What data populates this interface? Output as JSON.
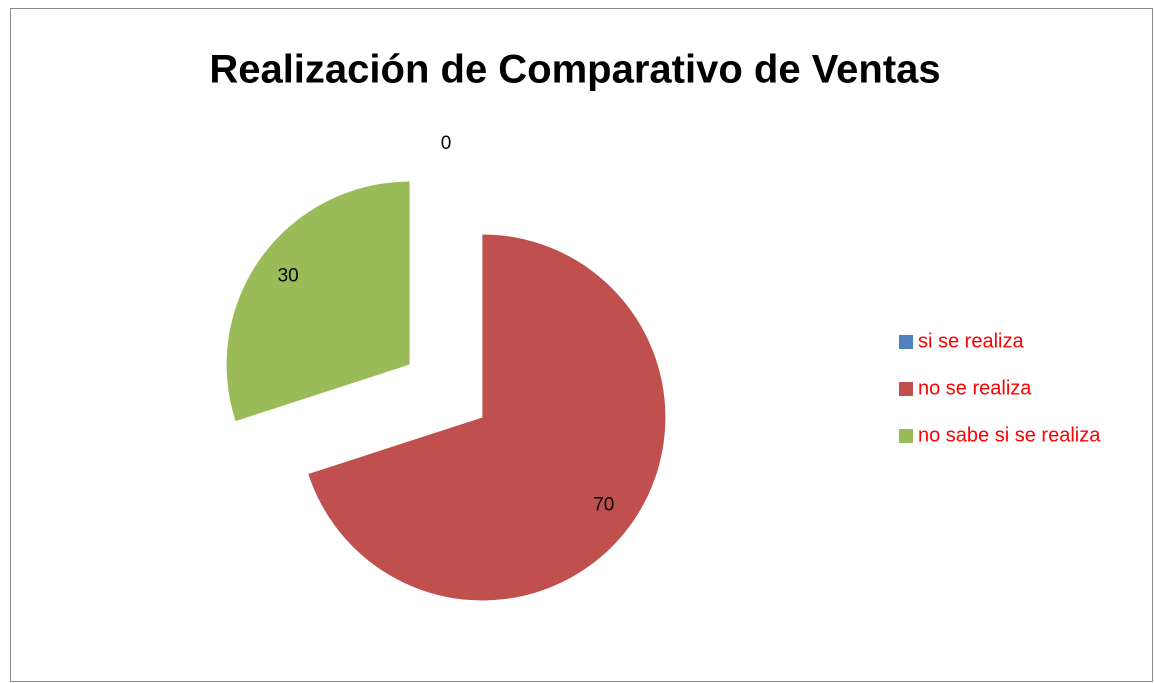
{
  "chart_data": {
    "type": "pie",
    "title": "Realización de Comparativo de Ventas",
    "categories": [
      "si se realiza",
      "no se realiza",
      "no sabe si se realiza"
    ],
    "values": [
      0,
      70,
      30
    ],
    "colors": [
      "#4f81bd",
      "#c0504d",
      "#9bbb59"
    ],
    "legend": "right",
    "legend_color": "#ff0000"
  }
}
